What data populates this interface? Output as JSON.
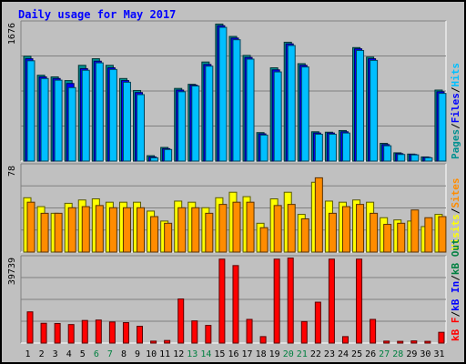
{
  "page_title": "Daily usage for May 2017",
  "chart_data": [
    {
      "type": "bar",
      "panel": "top",
      "categories": [
        "1",
        "2",
        "3",
        "4",
        "5",
        "6",
        "7",
        "8",
        "9",
        "10",
        "11",
        "12",
        "13",
        "14",
        "15",
        "16",
        "17",
        "18",
        "19",
        "20",
        "21",
        "22",
        "23",
        "24",
        "25",
        "26",
        "27",
        "28",
        "29",
        "30",
        "31"
      ],
      "weekend_days": [
        "6",
        "7",
        "13",
        "14",
        "20",
        "21",
        "27",
        "28"
      ],
      "ymax_label": "1676",
      "ylim": [
        0,
        1676
      ],
      "series": [
        {
          "name": "Pages",
          "color": "#009090",
          "values": [
            1270,
            1040,
            1020,
            975,
            1160,
            1240,
            1160,
            1000,
            855,
            65,
            165,
            880,
            930,
            1200,
            1660,
            1510,
            1280,
            345,
            1130,
            1440,
            1180,
            355,
            350,
            370,
            1375,
            1260,
            215,
            100,
            85,
            50,
            860
          ]
        },
        {
          "name": "Files",
          "color": "#0000ff",
          "values": [
            1240,
            1020,
            1000,
            940,
            1120,
            1210,
            1130,
            975,
            830,
            50,
            150,
            860,
            920,
            1170,
            1640,
            1490,
            1255,
            330,
            1105,
            1420,
            1160,
            340,
            340,
            355,
            1360,
            1240,
            200,
            90,
            80,
            45,
            840
          ]
        },
        {
          "name": "Hits",
          "color": "#00bfff",
          "values": [
            1215,
            1000,
            980,
            890,
            1100,
            1190,
            1110,
            955,
            805,
            40,
            140,
            840,
            910,
            1150,
            1620,
            1470,
            1235,
            315,
            1080,
            1400,
            1140,
            325,
            325,
            340,
            1340,
            1220,
            185,
            80,
            75,
            40,
            820
          ]
        }
      ],
      "vertical_label": [
        "Pages",
        "/",
        "Files",
        "/",
        "Hits"
      ]
    },
    {
      "type": "bar",
      "panel": "middle",
      "ymax_label": "78",
      "ylim": [
        0,
        78
      ],
      "series": [
        {
          "name": "Visits",
          "color": "#ffff00",
          "values": [
            49,
            41,
            35,
            44,
            47,
            48,
            45,
            45,
            45,
            37,
            28,
            46,
            45,
            40,
            49,
            54,
            50,
            26,
            48,
            54,
            34,
            63,
            46,
            45,
            47,
            45,
            31,
            29,
            28,
            23,
            34
          ]
        },
        {
          "name": "Sites",
          "color": "#ff8c00",
          "values": [
            45,
            35,
            35,
            40,
            41,
            42,
            40,
            40,
            40,
            32,
            26,
            40,
            40,
            35,
            43,
            45,
            45,
            22,
            42,
            43,
            30,
            67,
            35,
            41,
            43,
            35,
            25,
            26,
            38,
            31,
            32
          ]
        }
      ],
      "vertical_label": [
        "Visits",
        "/",
        "Sites"
      ]
    },
    {
      "type": "bar",
      "panel": "bottom",
      "ymax_label": "39739",
      "ylim": [
        0,
        39739
      ],
      "series": [
        {
          "name": "kB F",
          "color": "#ff0000",
          "values": [
            14500,
            9200,
            9100,
            8600,
            10500,
            10700,
            9800,
            9500,
            7800,
            900,
            1200,
            20500,
            10300,
            8200,
            39000,
            36000,
            11000,
            3000,
            39000,
            39500,
            10000,
            19000,
            39000,
            3000,
            39000,
            11000,
            900,
            800,
            1000,
            800,
            5000
          ]
        }
      ],
      "vertical_label": [
        "kB F",
        "/",
        "kB In",
        "/",
        "kB Out"
      ],
      "vertical_label_colors": [
        "#ff0000",
        "#000000",
        "#0000ff",
        "#000000",
        "#008040"
      ]
    }
  ]
}
